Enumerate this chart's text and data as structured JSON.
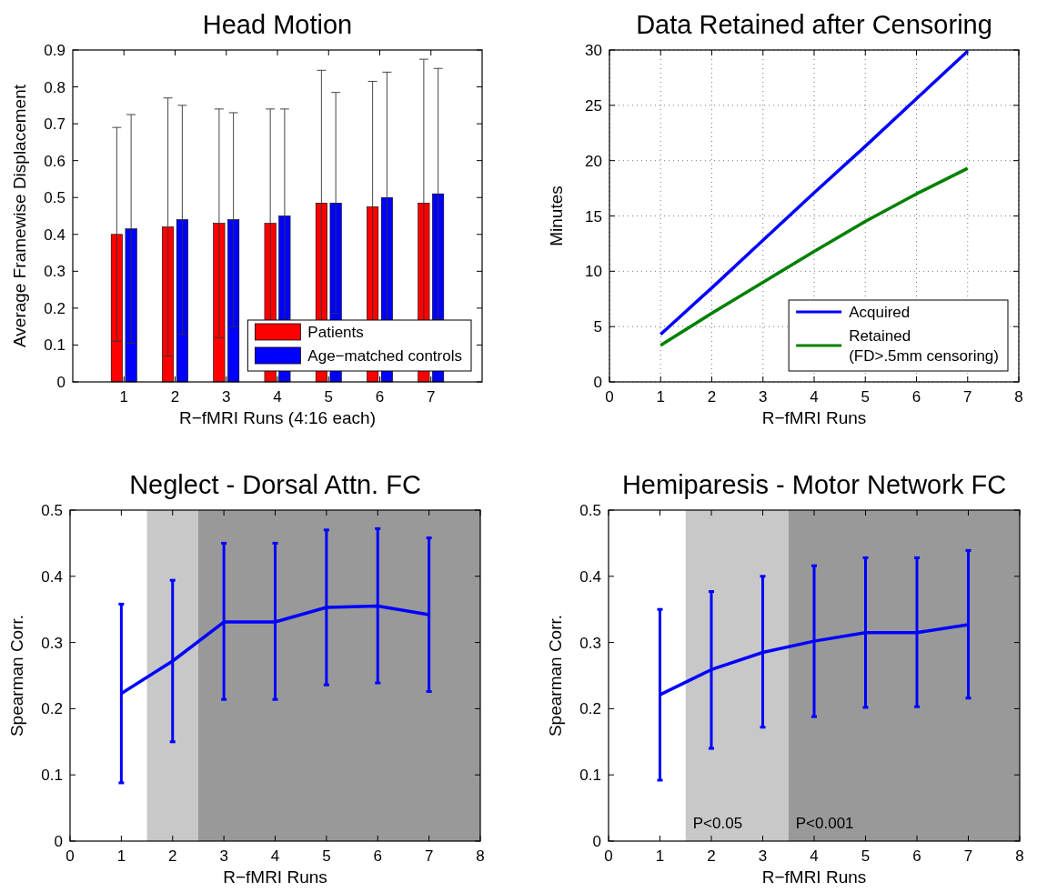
{
  "chart_data": [
    {
      "type": "bar",
      "title": "Head Motion",
      "xlabel": "R−fMRI Runs (4:16 each)",
      "ylabel": "Average Framewise Displacement",
      "categories": [
        "1",
        "2",
        "3",
        "4",
        "5",
        "6",
        "7"
      ],
      "ylim": [
        0,
        0.9
      ],
      "yticks": [
        0,
        0.1,
        0.2,
        0.3,
        0.4,
        0.5,
        0.6,
        0.7,
        0.8,
        0.9
      ],
      "legend": "bottom right",
      "series": [
        {
          "name": "Patients",
          "color": "#ff0000",
          "values": [
            0.4,
            0.42,
            0.43,
            0.43,
            0.485,
            0.475,
            0.485
          ],
          "errors": [
            0.29,
            0.35,
            0.31,
            0.31,
            0.36,
            0.34,
            0.39
          ]
        },
        {
          "name": "Age−matched controls",
          "color": "#0000ff",
          "values": [
            0.415,
            0.44,
            0.44,
            0.45,
            0.485,
            0.5,
            0.51
          ],
          "errors": [
            0.31,
            0.31,
            0.29,
            0.29,
            0.3,
            0.34,
            0.34
          ]
        }
      ]
    },
    {
      "type": "line",
      "title": "Data Retained after Censoring",
      "xlabel": "R−fMRI Runs",
      "ylabel": "Minutes",
      "x": [
        1,
        2,
        3,
        4,
        5,
        6,
        7
      ],
      "xlim": [
        0,
        8
      ],
      "xticks": [
        0,
        1,
        2,
        3,
        4,
        5,
        6,
        7,
        8
      ],
      "ylim": [
        0,
        30
      ],
      "yticks": [
        0,
        5,
        10,
        15,
        20,
        25,
        30
      ],
      "grid": true,
      "legend": "bottom right",
      "series": [
        {
          "name": "Acquired",
          "color": "#0000ff",
          "values": [
            4.3,
            8.5,
            12.8,
            17.1,
            21.3,
            25.6,
            29.9
          ]
        },
        {
          "name": "Retained\n(FD>.5mm censoring)",
          "color": "#008000",
          "values": [
            3.3,
            6.2,
            9.0,
            11.8,
            14.5,
            17.0,
            19.3
          ]
        }
      ]
    },
    {
      "type": "line",
      "title": "Neglect - Dorsal Attn. FC",
      "xlabel": "R−fMRI Runs",
      "ylabel": "Spearman Corr.",
      "x": [
        1,
        2,
        3,
        4,
        5,
        6,
        7
      ],
      "xlim": [
        0,
        8
      ],
      "xticks": [
        0,
        1,
        2,
        3,
        4,
        5,
        6,
        7,
        8
      ],
      "ylim": [
        0,
        0.5
      ],
      "yticks": [
        0,
        0.1,
        0.2,
        0.3,
        0.4,
        0.5
      ],
      "bands": [
        {
          "axis": "x",
          "from": 1.5,
          "to": 2.5,
          "color": "#c8c8c8"
        },
        {
          "axis": "x",
          "from": 2.5,
          "to": 8,
          "color": "#999999"
        }
      ],
      "series": [
        {
          "color": "#0000ff",
          "values": [
            0.223,
            0.272,
            0.331,
            0.331,
            0.353,
            0.355,
            0.342
          ],
          "errors": [
            [
              0.088,
              0.358
            ],
            [
              0.15,
              0.394
            ],
            [
              0.214,
              0.45
            ],
            [
              0.214,
              0.45
            ],
            [
              0.236,
              0.47
            ],
            [
              0.239,
              0.472
            ],
            [
              0.226,
              0.458
            ]
          ]
        }
      ]
    },
    {
      "type": "line",
      "title": "Hemiparesis - Motor Network FC",
      "xlabel": "R−fMRI Runs",
      "ylabel": "Spearman Corr.",
      "x": [
        1,
        2,
        3,
        4,
        5,
        6,
        7
      ],
      "xlim": [
        0,
        8
      ],
      "xticks": [
        0,
        1,
        2,
        3,
        4,
        5,
        6,
        7,
        8
      ],
      "ylim": [
        0,
        0.5
      ],
      "yticks": [
        0,
        0.1,
        0.2,
        0.3,
        0.4,
        0.5
      ],
      "bands": [
        {
          "axis": "x",
          "from": 1.5,
          "to": 3.5,
          "color": "#c8c8c8",
          "label": "P<0.05"
        },
        {
          "axis": "x",
          "from": 3.5,
          "to": 8,
          "color": "#999999",
          "label": "P<0.001"
        }
      ],
      "series": [
        {
          "color": "#0000ff",
          "values": [
            0.221,
            0.259,
            0.285,
            0.302,
            0.315,
            0.315,
            0.327
          ],
          "errors": [
            [
              0.092,
              0.35
            ],
            [
              0.14,
              0.377
            ],
            [
              0.172,
              0.4
            ],
            [
              0.188,
              0.416
            ],
            [
              0.202,
              0.428
            ],
            [
              0.203,
              0.428
            ],
            [
              0.216,
              0.439
            ]
          ]
        }
      ]
    }
  ]
}
